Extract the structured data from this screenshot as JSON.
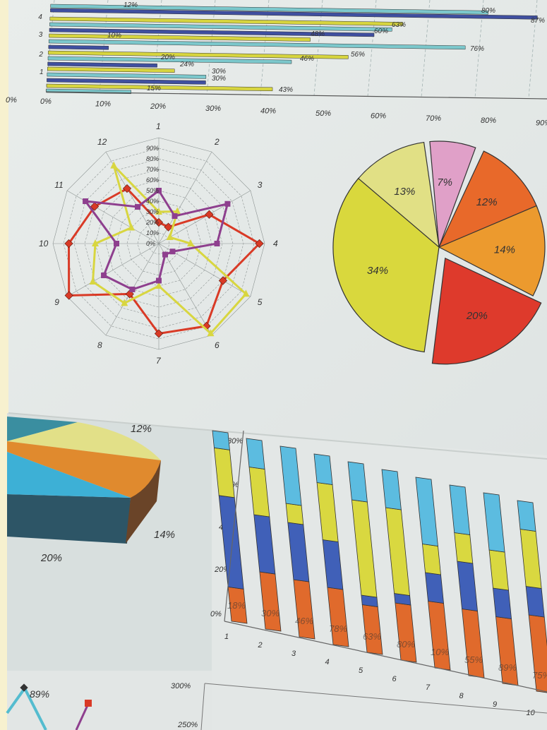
{
  "top_bar_chart": {
    "x_ticks": [
      "0%",
      "10%",
      "20%",
      "30%",
      "40%",
      "50%",
      "60%",
      "70%",
      "80%",
      "90%"
    ],
    "left_edge_tick": "0%",
    "y_ticks": [
      "1",
      "2",
      "3",
      "4"
    ],
    "labels": [
      "80%",
      "87%",
      "63%",
      "60%",
      "48%",
      "76%",
      "10%",
      "56%",
      "46%",
      "20%",
      "24%",
      "30%",
      "30%",
      "43%",
      "15%",
      "12%"
    ]
  },
  "radar_chart": {
    "axis_numbers": [
      "1",
      "2",
      "3",
      "4",
      "5",
      "6",
      "7",
      "8",
      "9",
      "10",
      "11",
      "12"
    ],
    "ring_labels": [
      "90%",
      "80%",
      "70%",
      "60%",
      "50%",
      "40%",
      "30%",
      "20%",
      "10%",
      "0%"
    ],
    "series_colors": [
      "#d93a26",
      "#d8d640",
      "#8e3f8e"
    ]
  },
  "pie_chart": {
    "slice_labels": [
      "13%",
      "7%",
      "12%",
      "14%",
      "20%",
      "34%"
    ],
    "slice_colors": [
      "#e1e085",
      "#e0a0c8",
      "#e8692a",
      "#ec9a2e",
      "#de3a2c",
      "#d9d83d"
    ]
  },
  "pie3d_chart": {
    "labels": [
      "12%",
      "14%",
      "20%"
    ]
  },
  "stacked_bar_chart": {
    "y_ticks": [
      "80%",
      "60%",
      "40%",
      "20%",
      "0%"
    ],
    "x_ticks": [
      "1",
      "2",
      "3",
      "4",
      "5",
      "6",
      "7",
      "8",
      "9",
      "10"
    ],
    "bar_labels": [
      "18%",
      "30%",
      "46%",
      "78%",
      "63%",
      "80%",
      "10%",
      "55%",
      "89%",
      "75%"
    ]
  },
  "bottom_line_chart": {
    "labels": [
      "89%",
      "300%",
      "250%"
    ]
  }
}
